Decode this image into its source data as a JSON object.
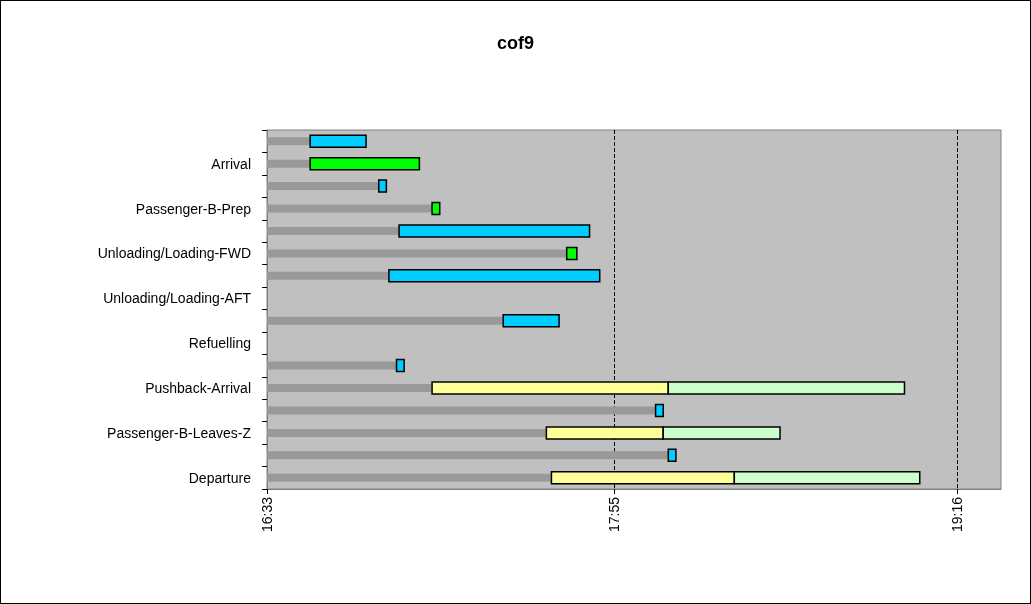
{
  "chart_data": {
    "type": "bar",
    "title": "cof9",
    "orientation": "horizontal",
    "categories": [
      null,
      "Arrival",
      null,
      "Passenger-B-Prep",
      null,
      "Unloading/Loading-FWD",
      null,
      "Unloading/Loading-AFT",
      null,
      "Refuelling",
      null,
      "Pushback-Arrival",
      null,
      "Passenger-B-Leaves-Z",
      null,
      "Departure"
    ],
    "series": [
      {
        "color": "#999999",
        "values": [
          16.72,
          16.72,
          16.99,
          17.2,
          17.07,
          17.73,
          17.03,
          null,
          17.48,
          null,
          17.06,
          17.2,
          18.08,
          17.65,
          18.13,
          17.67
        ]
      },
      {
        "colors": [
          "#00ccff",
          "#00ff00",
          "#00ccff",
          "#00ff00",
          "#00ccff",
          "#00ff00",
          "#00ccff",
          null,
          "#00ccff",
          null,
          "#00ccff",
          "#ffff99",
          "#00ccff",
          "#ffff99",
          "#00ccff",
          "#ffff99"
        ],
        "base": [
          16.72,
          16.72,
          16.99,
          17.2,
          17.07,
          17.73,
          17.03,
          null,
          17.48,
          null,
          17.06,
          17.2,
          18.08,
          17.65,
          18.13,
          17.67
        ],
        "values": [
          0.22,
          0.43,
          0.03,
          0.03,
          0.75,
          0.04,
          0.83,
          null,
          0.22,
          null,
          0.03,
          0.93,
          0.03,
          0.46,
          0.03,
          0.72
        ]
      },
      {
        "color": "#ccffcc",
        "base": [
          null,
          null,
          null,
          null,
          null,
          null,
          null,
          null,
          null,
          null,
          null,
          18.13,
          null,
          18.11,
          null,
          18.39
        ],
        "values": [
          null,
          null,
          null,
          null,
          null,
          null,
          null,
          null,
          null,
          null,
          null,
          0.93,
          null,
          0.46,
          null,
          0.73
        ]
      }
    ],
    "xlim": [
      16.55,
      19.44
    ],
    "xticks": [
      {
        "value": 16.55,
        "label": "16:33"
      },
      {
        "value": 17.9167,
        "label": "17:55"
      },
      {
        "value": 19.2667,
        "label": "19:16"
      }
    ],
    "grid": "x"
  }
}
